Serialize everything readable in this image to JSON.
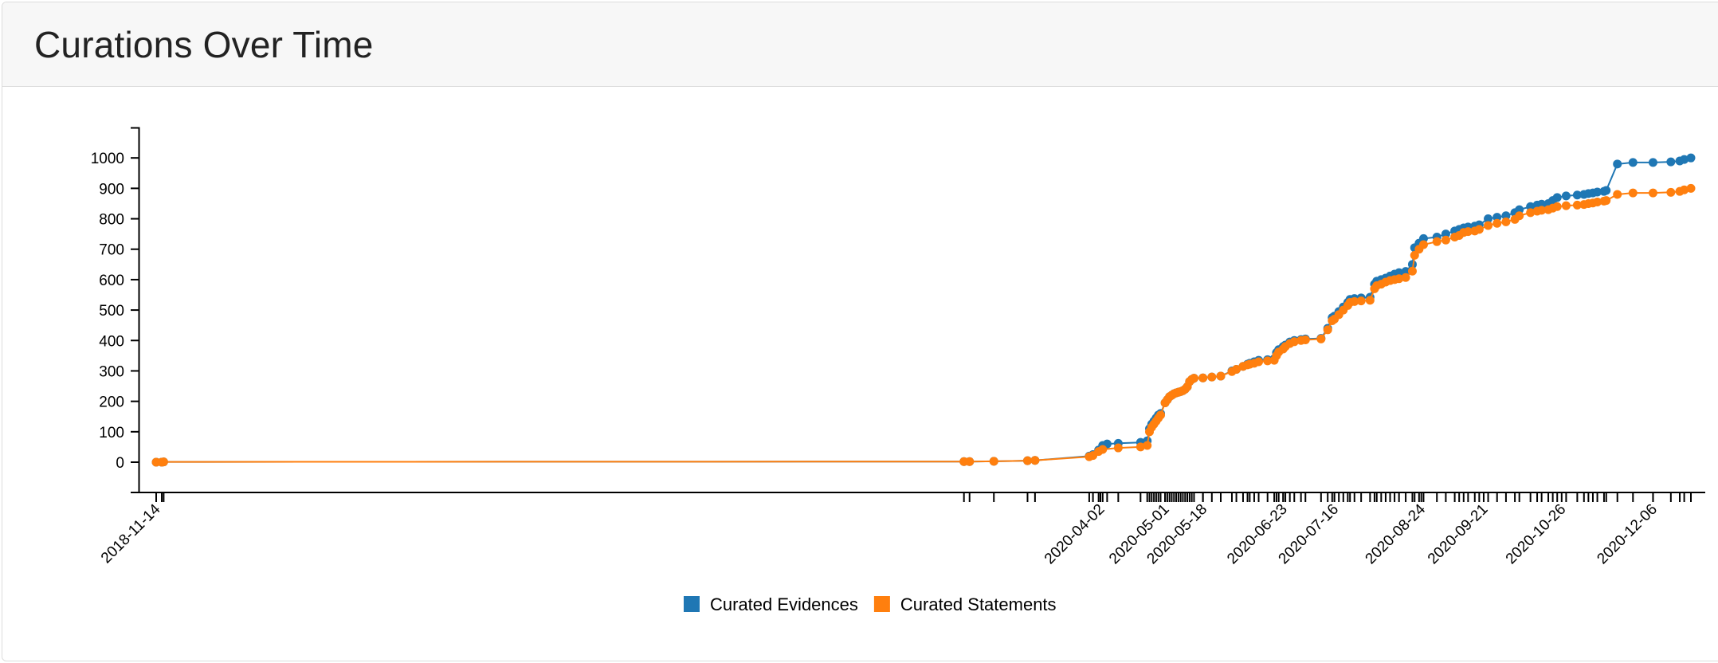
{
  "card": {
    "title": "Curations Over Time"
  },
  "chart_data": {
    "type": "line",
    "title": "Curations Over Time",
    "xlabel": "",
    "ylabel": "",
    "ylim": [
      -100,
      1100
    ],
    "y_ticks": [
      0,
      100,
      200,
      300,
      400,
      500,
      600,
      700,
      800,
      900,
      1000
    ],
    "x_tick_labels": [
      "2018-11-14",
      "2020-04-02",
      "2020-05-01",
      "2020-05-18",
      "2020-06-23",
      "2020-07-16",
      "2020-08-24",
      "2020-09-21",
      "2020-10-26",
      "2020-12-06"
    ],
    "legend": {
      "position": "bottom-center"
    },
    "series": [
      {
        "name": "Curated Evidences",
        "color": "#1f77b4",
        "points": [
          [
            "2018-11-14",
            0
          ],
          [
            "2018-11-17",
            0
          ],
          [
            "2018-11-18",
            1
          ],
          [
            "2020-01-20",
            2
          ],
          [
            "2020-01-23",
            2
          ],
          [
            "2020-02-05",
            3
          ],
          [
            "2020-02-23",
            5
          ],
          [
            "2020-02-27",
            6
          ],
          [
            "2020-03-27",
            20
          ],
          [
            "2020-03-29",
            25
          ],
          [
            "2020-04-01",
            40
          ],
          [
            "2020-04-03",
            55
          ],
          [
            "2020-04-05",
            60
          ],
          [
            "2020-04-10",
            62
          ],
          [
            "2020-04-20",
            65
          ],
          [
            "2020-04-23",
            70
          ],
          [
            "2020-04-24",
            110
          ],
          [
            "2020-04-25",
            125
          ],
          [
            "2020-04-26",
            135
          ],
          [
            "2020-04-27",
            145
          ],
          [
            "2020-04-28",
            155
          ],
          [
            "2020-04-29",
            160
          ],
          [
            "2020-05-01",
            195
          ],
          [
            "2020-05-02",
            205
          ],
          [
            "2020-05-03",
            215
          ],
          [
            "2020-05-04",
            220
          ],
          [
            "2020-05-05",
            225
          ],
          [
            "2020-05-06",
            228
          ],
          [
            "2020-05-07",
            230
          ],
          [
            "2020-05-08",
            232
          ],
          [
            "2020-05-09",
            235
          ],
          [
            "2020-05-10",
            240
          ],
          [
            "2020-05-11",
            248
          ],
          [
            "2020-05-12",
            265
          ],
          [
            "2020-05-13",
            272
          ],
          [
            "2020-05-14",
            276
          ],
          [
            "2020-05-18",
            277
          ],
          [
            "2020-05-22",
            280
          ],
          [
            "2020-05-26",
            283
          ],
          [
            "2020-05-31",
            300
          ],
          [
            "2020-06-02",
            305
          ],
          [
            "2020-06-05",
            315
          ],
          [
            "2020-06-07",
            322
          ],
          [
            "2020-06-08",
            325
          ],
          [
            "2020-06-10",
            330
          ],
          [
            "2020-06-12",
            335
          ],
          [
            "2020-06-16",
            337
          ],
          [
            "2020-06-19",
            340
          ],
          [
            "2020-06-20",
            360
          ],
          [
            "2020-06-21",
            370
          ],
          [
            "2020-06-23",
            380
          ],
          [
            "2020-06-24",
            385
          ],
          [
            "2020-06-26",
            395
          ],
          [
            "2020-06-28",
            400
          ],
          [
            "2020-07-01",
            403
          ],
          [
            "2020-07-03",
            405
          ],
          [
            "2020-07-10",
            407
          ],
          [
            "2020-07-13",
            440
          ],
          [
            "2020-07-15",
            475
          ],
          [
            "2020-07-16",
            480
          ],
          [
            "2020-07-18",
            495
          ],
          [
            "2020-07-20",
            510
          ],
          [
            "2020-07-22",
            525
          ],
          [
            "2020-07-23",
            535
          ],
          [
            "2020-07-25",
            538
          ],
          [
            "2020-07-28",
            540
          ],
          [
            "2020-08-01",
            542
          ],
          [
            "2020-08-03",
            585
          ],
          [
            "2020-08-04",
            595
          ],
          [
            "2020-08-06",
            600
          ],
          [
            "2020-08-08",
            605
          ],
          [
            "2020-08-10",
            612
          ],
          [
            "2020-08-12",
            618
          ],
          [
            "2020-08-14",
            623
          ],
          [
            "2020-08-17",
            627
          ],
          [
            "2020-08-20",
            650
          ],
          [
            "2020-08-21",
            705
          ],
          [
            "2020-08-23",
            720
          ],
          [
            "2020-08-25",
            735
          ],
          [
            "2020-08-31",
            740
          ],
          [
            "2020-09-04",
            750
          ],
          [
            "2020-09-08",
            760
          ],
          [
            "2020-09-10",
            765
          ],
          [
            "2020-09-12",
            770
          ],
          [
            "2020-09-14",
            773
          ],
          [
            "2020-09-17",
            776
          ],
          [
            "2020-09-19",
            780
          ],
          [
            "2020-09-23",
            800
          ],
          [
            "2020-09-27",
            805
          ],
          [
            "2020-10-01",
            810
          ],
          [
            "2020-10-05",
            820
          ],
          [
            "2020-10-07",
            830
          ],
          [
            "2020-10-12",
            840
          ],
          [
            "2020-10-15",
            845
          ],
          [
            "2020-10-17",
            848
          ],
          [
            "2020-10-20",
            850
          ],
          [
            "2020-10-22",
            860
          ],
          [
            "2020-10-24",
            870
          ],
          [
            "2020-10-28",
            875
          ],
          [
            "2020-11-02",
            878
          ],
          [
            "2020-11-05",
            880
          ],
          [
            "2020-11-07",
            883
          ],
          [
            "2020-11-09",
            885
          ],
          [
            "2020-11-11",
            888
          ],
          [
            "2020-11-14",
            890
          ],
          [
            "2020-11-15",
            893
          ],
          [
            "2020-11-20",
            980
          ],
          [
            "2020-11-27",
            985
          ],
          [
            "2020-12-06",
            985
          ],
          [
            "2020-12-14",
            987
          ],
          [
            "2020-12-18",
            990
          ],
          [
            "2020-12-20",
            995
          ],
          [
            "2020-12-23",
            1000
          ]
        ]
      },
      {
        "name": "Curated Statements",
        "color": "#ff7f0e",
        "points": [
          [
            "2018-11-14",
            0
          ],
          [
            "2018-11-17",
            0
          ],
          [
            "2018-11-18",
            1
          ],
          [
            "2020-01-20",
            2
          ],
          [
            "2020-01-23",
            2
          ],
          [
            "2020-02-05",
            3
          ],
          [
            "2020-02-23",
            5
          ],
          [
            "2020-02-27",
            6
          ],
          [
            "2020-03-27",
            18
          ],
          [
            "2020-03-29",
            22
          ],
          [
            "2020-04-01",
            35
          ],
          [
            "2020-04-03",
            42
          ],
          [
            "2020-04-10",
            47
          ],
          [
            "2020-04-20",
            50
          ],
          [
            "2020-04-23",
            55
          ],
          [
            "2020-04-24",
            100
          ],
          [
            "2020-04-25",
            115
          ],
          [
            "2020-04-26",
            125
          ],
          [
            "2020-04-27",
            135
          ],
          [
            "2020-04-28",
            145
          ],
          [
            "2020-04-29",
            155
          ],
          [
            "2020-05-01",
            195
          ],
          [
            "2020-05-02",
            205
          ],
          [
            "2020-05-03",
            215
          ],
          [
            "2020-05-04",
            220
          ],
          [
            "2020-05-05",
            225
          ],
          [
            "2020-05-06",
            228
          ],
          [
            "2020-05-07",
            230
          ],
          [
            "2020-05-08",
            232
          ],
          [
            "2020-05-09",
            235
          ],
          [
            "2020-05-10",
            240
          ],
          [
            "2020-05-11",
            248
          ],
          [
            "2020-05-12",
            265
          ],
          [
            "2020-05-13",
            272
          ],
          [
            "2020-05-14",
            276
          ],
          [
            "2020-05-18",
            277
          ],
          [
            "2020-05-22",
            280
          ],
          [
            "2020-05-26",
            283
          ],
          [
            "2020-05-31",
            298
          ],
          [
            "2020-06-02",
            305
          ],
          [
            "2020-06-05",
            315
          ],
          [
            "2020-06-07",
            320
          ],
          [
            "2020-06-08",
            322
          ],
          [
            "2020-06-10",
            325
          ],
          [
            "2020-06-12",
            330
          ],
          [
            "2020-06-16",
            333
          ],
          [
            "2020-06-19",
            335
          ],
          [
            "2020-06-20",
            350
          ],
          [
            "2020-06-21",
            362
          ],
          [
            "2020-06-23",
            372
          ],
          [
            "2020-06-24",
            380
          ],
          [
            "2020-06-26",
            390
          ],
          [
            "2020-06-28",
            396
          ],
          [
            "2020-07-01",
            400
          ],
          [
            "2020-07-03",
            402
          ],
          [
            "2020-07-10",
            405
          ],
          [
            "2020-07-13",
            435
          ],
          [
            "2020-07-15",
            465
          ],
          [
            "2020-07-16",
            470
          ],
          [
            "2020-07-18",
            485
          ],
          [
            "2020-07-20",
            500
          ],
          [
            "2020-07-22",
            515
          ],
          [
            "2020-07-23",
            525
          ],
          [
            "2020-07-25",
            528
          ],
          [
            "2020-07-28",
            530
          ],
          [
            "2020-08-01",
            532
          ],
          [
            "2020-08-03",
            570
          ],
          [
            "2020-08-04",
            580
          ],
          [
            "2020-08-06",
            585
          ],
          [
            "2020-08-08",
            592
          ],
          [
            "2020-08-10",
            597
          ],
          [
            "2020-08-12",
            600
          ],
          [
            "2020-08-14",
            603
          ],
          [
            "2020-08-17",
            607
          ],
          [
            "2020-08-20",
            628
          ],
          [
            "2020-08-21",
            680
          ],
          [
            "2020-08-23",
            700
          ],
          [
            "2020-08-25",
            715
          ],
          [
            "2020-08-31",
            725
          ],
          [
            "2020-09-04",
            730
          ],
          [
            "2020-09-08",
            740
          ],
          [
            "2020-09-10",
            745
          ],
          [
            "2020-09-12",
            755
          ],
          [
            "2020-09-14",
            758
          ],
          [
            "2020-09-17",
            760
          ],
          [
            "2020-09-19",
            765
          ],
          [
            "2020-09-23",
            778
          ],
          [
            "2020-09-27",
            785
          ],
          [
            "2020-10-01",
            790
          ],
          [
            "2020-10-05",
            798
          ],
          [
            "2020-10-07",
            810
          ],
          [
            "2020-10-12",
            820
          ],
          [
            "2020-10-15",
            825
          ],
          [
            "2020-10-17",
            828
          ],
          [
            "2020-10-20",
            830
          ],
          [
            "2020-10-22",
            835
          ],
          [
            "2020-10-24",
            840
          ],
          [
            "2020-10-28",
            843
          ],
          [
            "2020-11-02",
            845
          ],
          [
            "2020-11-05",
            847
          ],
          [
            "2020-11-07",
            850
          ],
          [
            "2020-11-09",
            852
          ],
          [
            "2020-11-11",
            855
          ],
          [
            "2020-11-14",
            858
          ],
          [
            "2020-11-15",
            860
          ],
          [
            "2020-11-20",
            880
          ],
          [
            "2020-11-27",
            885
          ],
          [
            "2020-12-06",
            885
          ],
          [
            "2020-12-14",
            887
          ],
          [
            "2020-12-18",
            890
          ],
          [
            "2020-12-20",
            895
          ],
          [
            "2020-12-23",
            900
          ]
        ]
      }
    ]
  }
}
